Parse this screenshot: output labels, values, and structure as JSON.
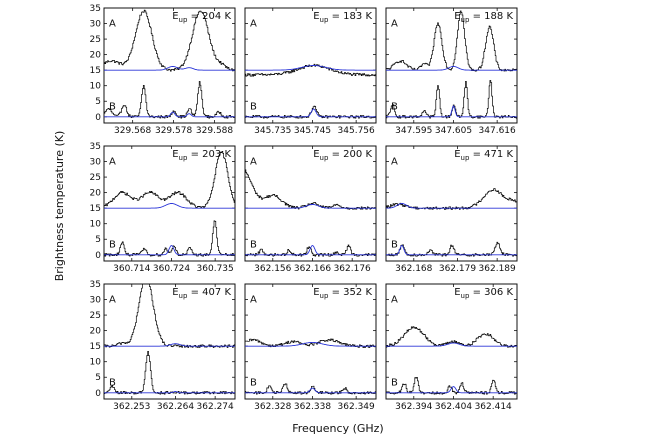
{
  "figure": {
    "ylabel": "Brightness temperature (K)",
    "xlabel": "Frequency (GHz)"
  },
  "colors": {
    "observed": "#000000",
    "model": "#2a35d8",
    "axis": "#111111"
  },
  "chart_data": [
    {
      "type": "line",
      "eup": "204 K",
      "xlim": [
        329.561,
        329.593
      ],
      "ylim": [
        -2,
        35
      ],
      "yticks": [
        0,
        5,
        10,
        15,
        20,
        25,
        30,
        35
      ],
      "xticks": [
        "329.568",
        "329.578",
        "329.588"
      ],
      "xtick_vals": [
        329.568,
        329.578,
        329.588
      ],
      "spectrum_A": {
        "baseline": 15,
        "lines": [
          [
            329.5627,
            3,
            0.0022
          ],
          [
            329.5706,
            19,
            0.002
          ],
          [
            329.5845,
            19,
            0.002
          ],
          [
            329.5895,
            1.5,
            0.0012
          ]
        ]
      },
      "spectrum_B": {
        "baseline": 0,
        "lines": [
          [
            329.562,
            2.5,
            0.0008
          ],
          [
            329.5658,
            4,
            0.0006
          ],
          [
            329.5706,
            10,
            0.0005
          ],
          [
            329.578,
            2,
            0.0005
          ],
          [
            329.5818,
            2.5,
            0.0005
          ],
          [
            329.5843,
            11,
            0.0005
          ],
          [
            329.589,
            1.5,
            0.0006
          ]
        ]
      },
      "model_A": {
        "baseline": 15,
        "lines": [
          [
            329.5778,
            1.2,
            0.0012
          ],
          [
            329.5818,
            0.8,
            0.001
          ]
        ]
      },
      "model_B": {
        "baseline": 0,
        "lines": [
          [
            329.5778,
            1.5,
            0.0005
          ],
          [
            329.5818,
            1,
            0.0005
          ]
        ]
      }
    },
    {
      "type": "line",
      "eup": "183 K",
      "xlim": [
        345.728,
        345.761
      ],
      "ylim": [
        -2,
        35
      ],
      "yticks": [
        0,
        5,
        10,
        15,
        20,
        25,
        30,
        35
      ],
      "xticks": [
        "345.735",
        "345.745",
        "345.756"
      ],
      "xtick_vals": [
        345.735,
        345.745,
        345.756
      ],
      "spectrum_A": {
        "baseline": 13.5,
        "lines": [
          [
            345.7453,
            3,
            0.004
          ]
        ]
      },
      "spectrum_B": {
        "baseline": 0,
        "lines": [
          [
            345.7453,
            3.5,
            0.0006
          ]
        ]
      },
      "model_A": {
        "baseline": 15,
        "lines": [
          [
            345.7453,
            1.5,
            0.003
          ]
        ]
      },
      "model_B": {
        "baseline": 0,
        "lines": [
          [
            345.7453,
            2.5,
            0.0006
          ]
        ]
      }
    },
    {
      "type": "line",
      "eup": "188 K",
      "xlim": [
        347.588,
        347.621
      ],
      "ylim": [
        -2,
        35
      ],
      "yticks": [
        0,
        5,
        10,
        15,
        20,
        25,
        30,
        35
      ],
      "xticks": [
        "347.595",
        "347.605",
        "347.616"
      ],
      "xtick_vals": [
        347.595,
        347.605,
        347.616
      ],
      "spectrum_A": {
        "baseline": 15,
        "lines": [
          [
            347.5915,
            3,
            0.0015
          ],
          [
            347.5975,
            2,
            0.0008
          ],
          [
            347.601,
            15,
            0.001
          ],
          [
            347.6068,
            19,
            0.0009
          ],
          [
            347.614,
            14,
            0.001
          ]
        ]
      },
      "spectrum_B": {
        "baseline": 0,
        "lines": [
          [
            347.5895,
            4,
            0.0005
          ],
          [
            347.5975,
            2,
            0.0005
          ],
          [
            347.601,
            10,
            0.0004
          ],
          [
            347.605,
            4,
            0.0004
          ],
          [
            347.608,
            11,
            0.0004
          ],
          [
            347.6142,
            12,
            0.0004
          ]
        ]
      },
      "model_A": {
        "baseline": 15,
        "lines": [
          [
            347.605,
            1.2,
            0.0012
          ]
        ]
      },
      "model_B": {
        "baseline": 0,
        "lines": [
          [
            347.605,
            3.5,
            0.0004
          ]
        ]
      }
    },
    {
      "type": "line",
      "eup": "203 K",
      "xlim": [
        360.707,
        360.74
      ],
      "ylim": [
        -2,
        35
      ],
      "yticks": [
        0,
        5,
        10,
        15,
        20,
        25,
        30,
        35
      ],
      "xticks": [
        "360.714",
        "360.724",
        "360.735"
      ],
      "xtick_vals": [
        360.714,
        360.724,
        360.735
      ],
      "spectrum_A": {
        "baseline": 15,
        "lines": [
          [
            360.7115,
            5,
            0.0022
          ],
          [
            360.7185,
            5,
            0.0022
          ],
          [
            360.7255,
            5,
            0.0022
          ],
          [
            360.7365,
            18,
            0.0016
          ]
        ]
      },
      "spectrum_B": {
        "baseline": 0,
        "lines": [
          [
            360.7115,
            4,
            0.0005
          ],
          [
            360.717,
            2,
            0.0005
          ],
          [
            360.7225,
            2,
            0.0005
          ],
          [
            360.7245,
            3,
            0.0005
          ],
          [
            360.7285,
            2,
            0.0005
          ],
          [
            360.7348,
            11,
            0.0005
          ]
        ]
      },
      "model_A": {
        "baseline": 15,
        "lines": [
          [
            360.724,
            1.5,
            0.0015
          ]
        ]
      },
      "model_B": {
        "baseline": 0,
        "lines": [
          [
            360.724,
            3,
            0.0006
          ]
        ]
      }
    },
    {
      "type": "line",
      "eup": "200 K",
      "xlim": [
        362.149,
        362.182
      ],
      "ylim": [
        -2,
        35
      ],
      "yticks": [
        0,
        5,
        10,
        15,
        20,
        25,
        30,
        35
      ],
      "xticks": [
        "362.156",
        "362.166",
        "362.176"
      ],
      "xtick_vals": [
        362.156,
        362.166,
        362.176
      ],
      "spectrum_A": {
        "baseline": 15,
        "lines": [
          [
            362.148,
            13,
            0.0025
          ],
          [
            362.156,
            4,
            0.0022
          ],
          [
            362.166,
            1.5,
            0.0015
          ],
          [
            362.172,
            1,
            0.001
          ]
        ]
      },
      "spectrum_B": {
        "baseline": 0,
        "lines": [
          [
            362.153,
            1.5,
            0.0005
          ],
          [
            362.16,
            1.5,
            0.0005
          ],
          [
            362.165,
            2.5,
            0.0005
          ],
          [
            362.172,
            1,
            0.0004
          ],
          [
            362.175,
            3,
            0.0005
          ]
        ]
      },
      "model_A": {
        "baseline": 15,
        "lines": [
          [
            362.166,
            1.2,
            0.0015
          ]
        ]
      },
      "model_B": {
        "baseline": 0,
        "lines": [
          [
            362.166,
            3,
            0.0006
          ]
        ]
      }
    },
    {
      "type": "line",
      "eup": "471 K",
      "xlim": [
        362.161,
        362.194
      ],
      "ylim": [
        -2,
        35
      ],
      "yticks": [
        0,
        5,
        10,
        15,
        20,
        25,
        30,
        35
      ],
      "xticks": [
        "362.168",
        "362.179",
        "362.189"
      ],
      "xtick_vals": [
        362.168,
        362.179,
        362.189
      ],
      "spectrum_A": {
        "baseline": 15,
        "lines": [
          [
            362.164,
            1.2,
            0.002
          ],
          [
            362.188,
            6,
            0.0025
          ],
          [
            362.193,
            2,
            0.001
          ]
        ]
      },
      "spectrum_B": {
        "baseline": 0,
        "lines": [
          [
            362.165,
            3.5,
            0.0005
          ],
          [
            362.172,
            1.5,
            0.0005
          ],
          [
            362.1775,
            3,
            0.0005
          ],
          [
            362.189,
            4,
            0.0006
          ]
        ]
      },
      "model_A": {
        "baseline": 15,
        "lines": [
          [
            362.165,
            1.5,
            0.0012
          ]
        ]
      },
      "model_B": {
        "baseline": 0,
        "lines": [
          [
            362.165,
            3,
            0.0005
          ]
        ]
      }
    },
    {
      "type": "line",
      "eup": "407 K",
      "xlim": [
        362.246,
        362.279
      ],
      "ylim": [
        -2,
        35
      ],
      "yticks": [
        0,
        5,
        10,
        15,
        20,
        25,
        30,
        35
      ],
      "xticks": [
        "362.253",
        "362.264",
        "362.274"
      ],
      "xtick_vals": [
        362.253,
        362.264,
        362.274
      ],
      "spectrum_A": {
        "baseline": 15,
        "lines": [
          [
            362.2565,
            22,
            0.0018
          ],
          [
            362.2505,
            1,
            0.001
          ]
        ]
      },
      "spectrum_B": {
        "baseline": 0,
        "lines": [
          [
            362.257,
            13,
            0.0006
          ],
          [
            362.248,
            2,
            0.0005
          ]
        ]
      },
      "model_A": {
        "baseline": 15,
        "lines": [
          [
            362.264,
            0.8,
            0.0012
          ]
        ]
      },
      "model_B": {
        "baseline": 0,
        "lines": [
          [
            362.264,
            0.4,
            0.0005
          ]
        ]
      }
    },
    {
      "type": "line",
      "eup": "352 K",
      "xlim": [
        362.321,
        362.354
      ],
      "ylim": [
        -2,
        35
      ],
      "yticks": [
        0,
        5,
        10,
        15,
        20,
        25,
        30,
        35
      ],
      "xticks": [
        "362.328",
        "362.338",
        "362.349"
      ],
      "xtick_vals": [
        362.328,
        362.338,
        362.349
      ],
      "spectrum_A": {
        "baseline": 15,
        "lines": [
          [
            362.323,
            2,
            0.002
          ],
          [
            362.333,
            1.5,
            0.002
          ],
          [
            362.342,
            2,
            0.0025
          ]
        ]
      },
      "spectrum_B": {
        "baseline": 0,
        "lines": [
          [
            362.327,
            2,
            0.0005
          ],
          [
            362.331,
            3,
            0.0005
          ],
          [
            362.338,
            2,
            0.0005
          ],
          [
            362.346,
            1.5,
            0.0005
          ]
        ]
      },
      "model_A": {
        "baseline": 15,
        "lines": [
          [
            362.338,
            1.2,
            0.0025
          ]
        ]
      },
      "model_B": {
        "baseline": 0,
        "lines": [
          [
            362.338,
            1.5,
            0.0006
          ]
        ]
      }
    },
    {
      "type": "line",
      "eup": "306 K",
      "xlim": [
        362.387,
        362.42
      ],
      "ylim": [
        -2,
        35
      ],
      "yticks": [
        0,
        5,
        10,
        15,
        20,
        25,
        30,
        35
      ],
      "xticks": [
        "362.394",
        "362.404",
        "362.414"
      ],
      "xtick_vals": [
        362.394,
        362.404,
        362.414
      ],
      "spectrum_A": {
        "baseline": 15,
        "lines": [
          [
            362.394,
            6,
            0.0025
          ],
          [
            362.404,
            1.5,
            0.0015
          ],
          [
            362.412,
            4,
            0.002
          ]
        ]
      },
      "spectrum_B": {
        "baseline": 0,
        "lines": [
          [
            362.3915,
            3,
            0.0005
          ],
          [
            362.3945,
            5,
            0.0005
          ],
          [
            362.403,
            2,
            0.0005
          ],
          [
            362.406,
            3,
            0.0005
          ],
          [
            362.414,
            4,
            0.0005
          ]
        ]
      },
      "model_A": {
        "baseline": 15,
        "lines": [
          [
            362.404,
            1,
            0.0015
          ]
        ]
      },
      "model_B": {
        "baseline": 0,
        "lines": [
          [
            362.404,
            2,
            0.0006
          ]
        ]
      }
    }
  ]
}
